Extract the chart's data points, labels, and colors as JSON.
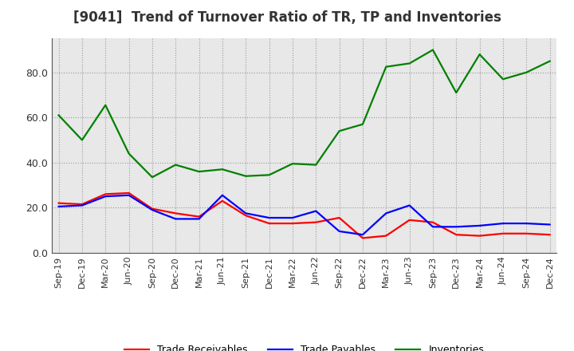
{
  "title": "[9041]  Trend of Turnover Ratio of TR, TP and Inventories",
  "x_labels": [
    "Sep-19",
    "Dec-19",
    "Mar-20",
    "Jun-20",
    "Sep-20",
    "Dec-20",
    "Mar-21",
    "Jun-21",
    "Sep-21",
    "Dec-21",
    "Mar-22",
    "Jun-22",
    "Sep-22",
    "Dec-22",
    "Mar-23",
    "Jun-23",
    "Sep-23",
    "Dec-23",
    "Mar-24",
    "Jun-24",
    "Sep-24",
    "Dec-24"
  ],
  "trade_receivables": [
    22.0,
    21.5,
    26.0,
    26.5,
    19.5,
    17.5,
    16.0,
    23.0,
    16.5,
    13.0,
    13.0,
    13.5,
    15.5,
    6.5,
    7.5,
    14.5,
    13.5,
    8.0,
    7.5,
    8.5,
    8.5,
    8.0
  ],
  "trade_payables": [
    20.5,
    21.0,
    25.0,
    25.5,
    19.0,
    15.0,
    15.0,
    25.5,
    17.5,
    15.5,
    15.5,
    18.5,
    9.5,
    8.0,
    17.5,
    21.0,
    11.5,
    11.5,
    12.0,
    13.0,
    13.0,
    12.5
  ],
  "inventories": [
    61.0,
    50.0,
    65.5,
    44.0,
    33.5,
    39.0,
    36.0,
    37.0,
    34.0,
    34.5,
    39.5,
    39.0,
    54.0,
    57.0,
    82.5,
    84.0,
    90.0,
    71.0,
    88.0,
    77.0,
    80.0,
    85.0
  ],
  "tr_color": "#ff0000",
  "tp_color": "#0000ff",
  "inv_color": "#008000",
  "ylim": [
    0,
    95
  ],
  "yticks": [
    0.0,
    20.0,
    40.0,
    60.0,
    80.0
  ],
  "plot_bg_color": "#e8e8e8",
  "background_color": "#ffffff",
  "grid_color": "#999999",
  "title_fontsize": 12,
  "tick_fontsize": 8,
  "legend_labels": [
    "Trade Receivables",
    "Trade Payables",
    "Inventories"
  ]
}
